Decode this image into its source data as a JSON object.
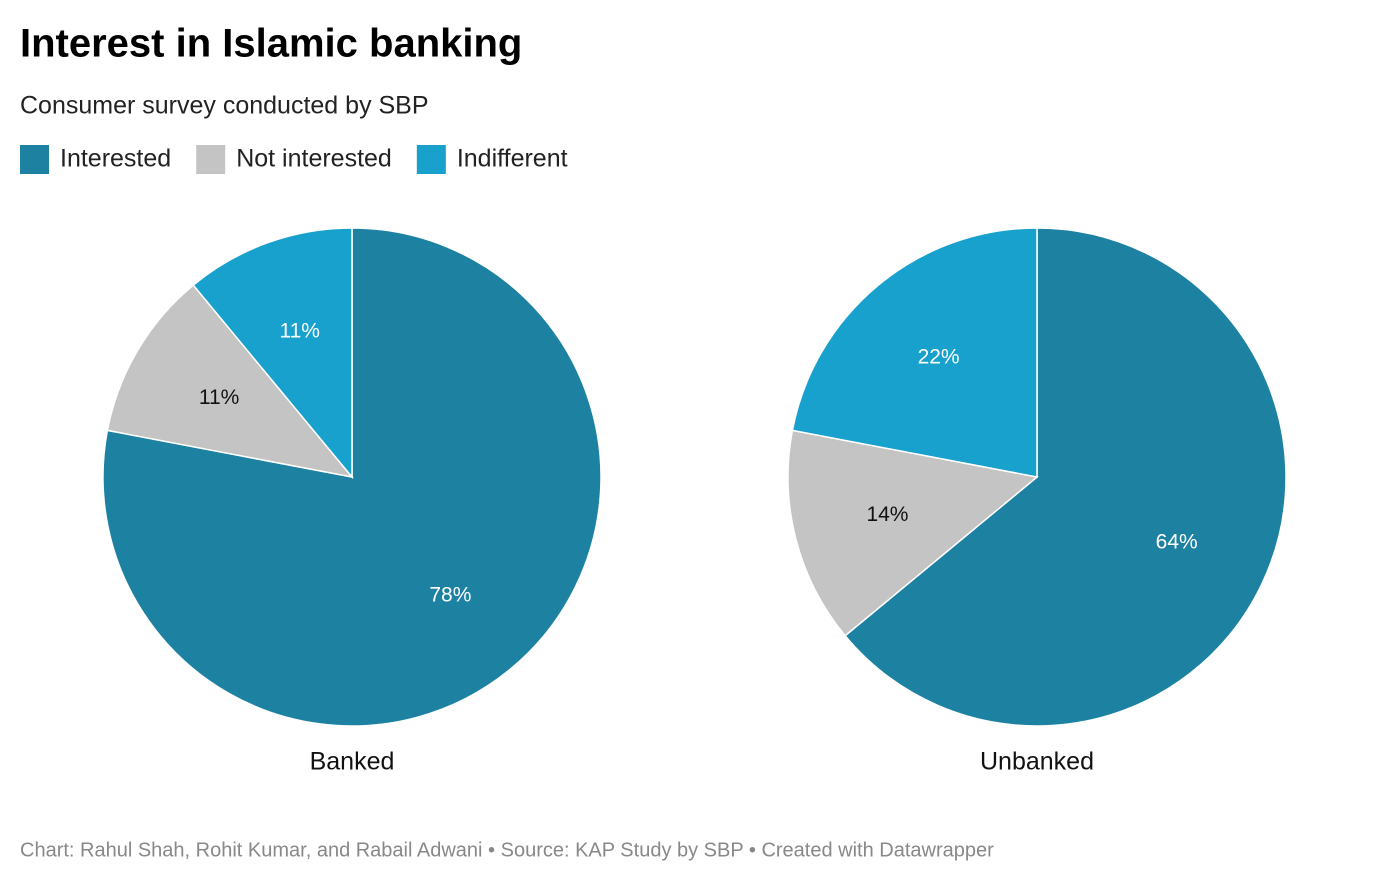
{
  "chart_data": {
    "type": "pie",
    "title": "Interest in Islamic banking",
    "subtitle": "Consumer survey conducted by SBP",
    "categories": [
      "Interested",
      "Not interested",
      "Indifferent"
    ],
    "colors": [
      "#1d81a2",
      "#c4c4c4",
      "#18a1cd"
    ],
    "series": [
      {
        "name": "Banked",
        "values": [
          78,
          11,
          11
        ],
        "value_labels": [
          "78%",
          "11%",
          "11%"
        ]
      },
      {
        "name": "Unbanked",
        "values": [
          64,
          14,
          22
        ],
        "value_labels": [
          "64%",
          "14%",
          "22%"
        ]
      }
    ],
    "footer": "Chart: Rahul Shah, Rohit Kumar, and Rabail Adwani • Source: KAP Study by SBP • Created with Datawrapper"
  }
}
